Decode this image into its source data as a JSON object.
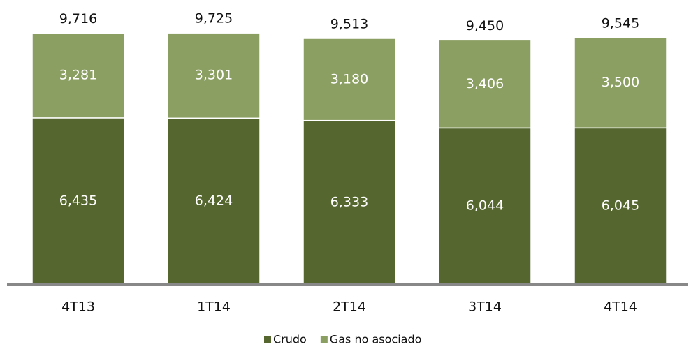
{
  "chart_data": {
    "type": "stacked_bar",
    "categories": [
      "4T13",
      "1T14",
      "2T14",
      "3T14",
      "4T14"
    ],
    "series": [
      {
        "name": "Crudo",
        "color": "#55672f",
        "values": [
          6435,
          6424,
          6333,
          6044,
          6045
        ],
        "value_labels": [
          "6,435",
          "6,424",
          "6,333",
          "6,044",
          "6,045"
        ]
      },
      {
        "name": "Gas no asociado",
        "color": "#8c9f63",
        "values": [
          3281,
          3301,
          3180,
          3406,
          3500
        ],
        "value_labels": [
          "3,281",
          "3,301",
          "3,180",
          "3,406",
          "3,500"
        ]
      }
    ],
    "totals": [
      9716,
      9725,
      9513,
      9450,
      9545
    ],
    "total_labels": [
      "9,716",
      "9,725",
      "9,513",
      "9,450",
      "9,545"
    ],
    "ylim": [
      0,
      10000
    ],
    "legend": "bottom"
  }
}
